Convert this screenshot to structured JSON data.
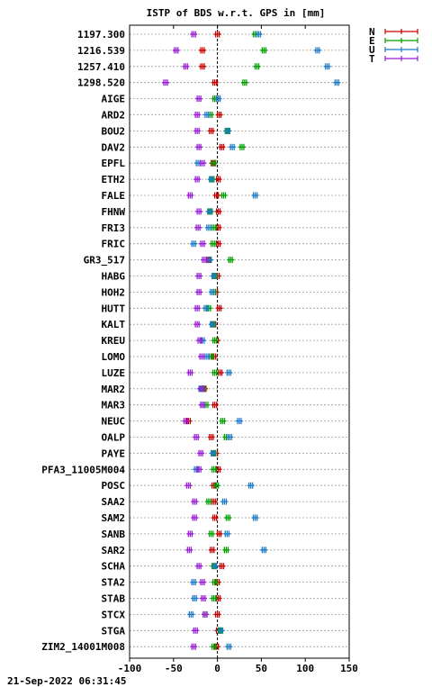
{
  "chart_data": {
    "type": "scatter",
    "title": "ISTP of BDS w.r.t. GPS in [mm]",
    "timestamp": "21-Sep-2022 06:31:45",
    "xlim": [
      -100,
      150
    ],
    "xticks": [
      "-100",
      "-50",
      "0",
      "50",
      "100",
      "150"
    ],
    "xtick_values": [
      -100,
      -50,
      0,
      50,
      100,
      150
    ],
    "grid": true,
    "legend_position": "top-right",
    "categories": [
      "1197.300",
      "1216.539",
      "1257.410",
      "1298.520",
      "AIGE",
      "ARD2",
      "BOU2",
      "DAV2",
      "EPFL",
      "ETH2",
      "FALE",
      "FHNW",
      "FRI3",
      "FRIC",
      "GR3_517",
      "HABG",
      "HOH2",
      "HUTT",
      "KALT",
      "KREU",
      "LOMO",
      "LUZE",
      "MAR2",
      "MAR3",
      "NEUC",
      "OALP",
      "PAYE",
      "PFA3_11005M004",
      "POSC",
      "SAA2",
      "SAM2",
      "SANB",
      "SAR2",
      "SCHA",
      "STA2",
      "STAB",
      "STCX",
      "STGA",
      "ZIM2_14001M008"
    ],
    "series": [
      {
        "name": "N",
        "color": "#cc0000",
        "values": [
          0,
          -17,
          -17,
          -3,
          -1,
          2,
          -7,
          5,
          -5,
          1,
          -1,
          1,
          1,
          1,
          -10,
          0,
          -2,
          2,
          -4,
          -1,
          -4,
          3,
          -15,
          -3,
          -33,
          -7,
          -2,
          1,
          -4,
          -4,
          -3,
          2,
          -6,
          5,
          0,
          1,
          0,
          1,
          -1
        ]
      },
      {
        "name": "E",
        "color": "#00a000",
        "values": [
          43,
          53,
          45,
          31,
          -3,
          -8,
          11,
          28,
          -4,
          -6,
          7,
          -8,
          -4,
          -5,
          15,
          -3,
          -4,
          -10,
          -5,
          -3,
          -7,
          -3,
          -16,
          -13,
          6,
          10,
          -4,
          -4,
          -1,
          -10,
          12,
          -7,
          10,
          -4,
          -3,
          -4,
          -14,
          3,
          -4
        ]
      },
      {
        "name": "U",
        "color": "#1e7bc8",
        "values": [
          47,
          114,
          125,
          136,
          1,
          -12,
          12,
          17,
          -22,
          -7,
          43,
          -9,
          -10,
          -27,
          -9,
          -4,
          -6,
          -13,
          -6,
          -17,
          -12,
          13,
          -19,
          -17,
          25,
          14,
          -5,
          -24,
          38,
          8,
          43,
          11,
          53,
          -3,
          -27,
          -26,
          -30,
          4,
          13
        ]
      },
      {
        "name": "T",
        "color": "#9a1fd6",
        "values": [
          -27,
          -47,
          -36,
          -59,
          -21,
          -23,
          -23,
          -21,
          -17,
          -23,
          -31,
          -21,
          -22,
          -17,
          -15,
          -21,
          -21,
          -23,
          -23,
          -20,
          -18,
          -31,
          -18,
          -17,
          -36,
          -24,
          -19,
          -21,
          -33,
          -26,
          -26,
          -31,
          -32,
          -21,
          -17,
          -16,
          -14,
          -25,
          -27
        ]
      }
    ]
  }
}
